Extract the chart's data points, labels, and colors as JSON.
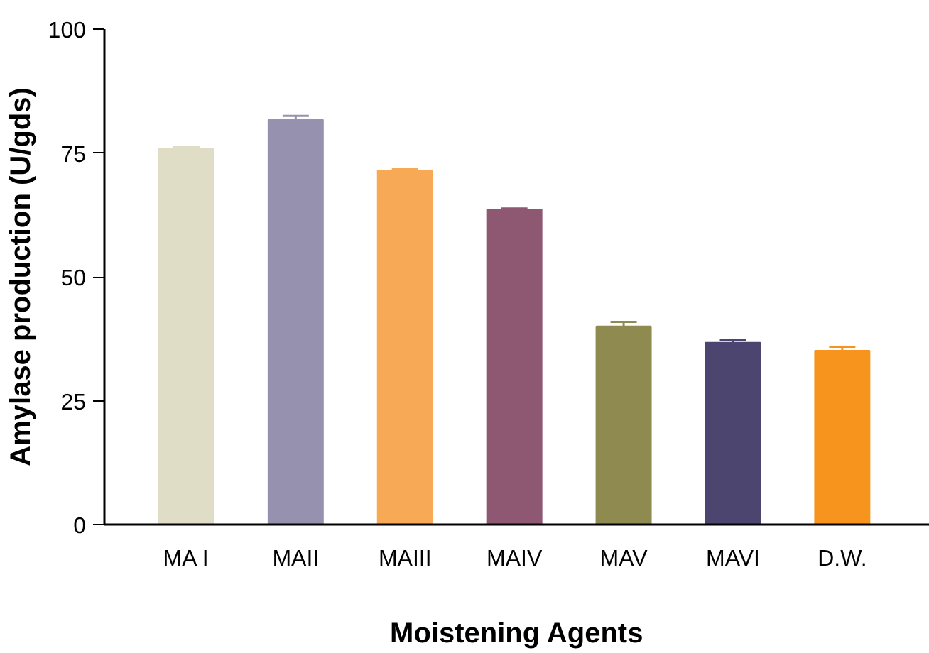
{
  "chart_data": {
    "type": "bar",
    "xlabel": "Moistening Agents",
    "ylabel": "Amylase production (U/gds)",
    "categories": [
      "MA I",
      "MAII",
      "MAIII",
      "MAIV",
      "MAV",
      "MAVI",
      "D.W."
    ],
    "values": [
      75.9,
      81.7,
      71.5,
      63.6,
      40.0,
      36.7,
      35.1
    ],
    "errors": [
      0.4,
      0.8,
      0.3,
      0.2,
      0.9,
      0.6,
      0.8
    ],
    "colors": [
      "#dfddc6",
      "#9591af",
      "#f7a955",
      "#8e5872",
      "#8f8b50",
      "#4b4570",
      "#f7941d"
    ],
    "ylim": [
      0,
      100
    ],
    "yticks": [
      0,
      25,
      50,
      75,
      100
    ],
    "grid": false
  }
}
